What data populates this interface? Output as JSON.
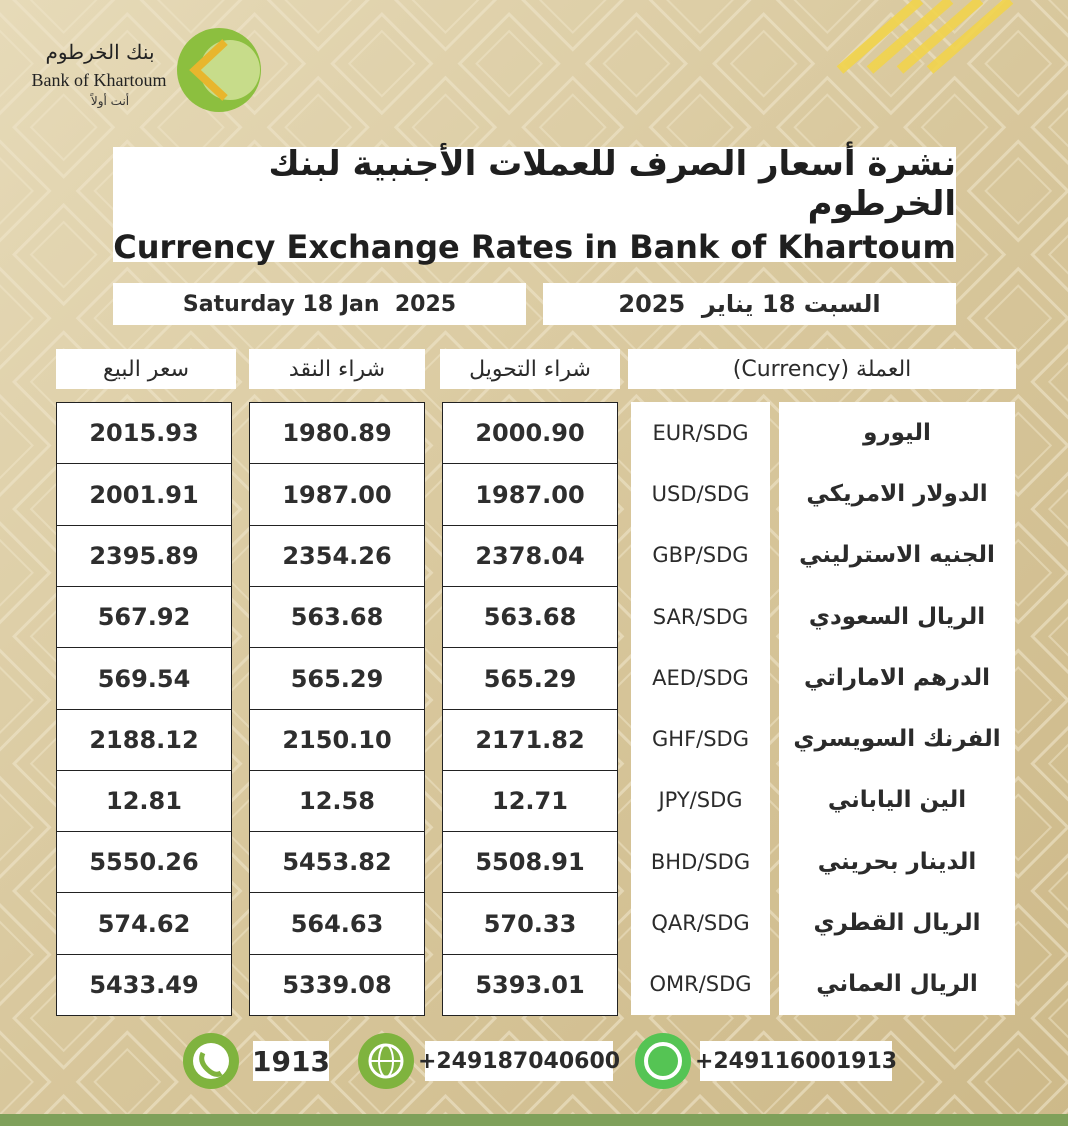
{
  "logo": {
    "name_ar": "بنك الخرطوم",
    "name_en": "Bank of Khartoum",
    "tagline": "أنت أولاً"
  },
  "header": {
    "title_ar": "نشرة أسعار الصرف للعملات الأجنبية لبنك الخرطوم",
    "title_en": "Currency Exchange Rates in Bank of Khartoum",
    "date_en": "Saturday 18 Jan  2025",
    "date_ar": "السبت 18 يناير  2025"
  },
  "table": {
    "columns": [
      "سعر البيع",
      "شراء النقد",
      "شراء التحويل",
      "العملة (Currency)"
    ],
    "rows": [
      {
        "name": "اليورو",
        "code": "EUR/SDG",
        "transfer": "2000.90",
        "cash": "1980.89",
        "sell": "2015.93"
      },
      {
        "name": "الدولار الامريكي",
        "code": "USD/SDG",
        "transfer": "1987.00",
        "cash": "1987.00",
        "sell": "2001.91"
      },
      {
        "name": "الجنيه الاسترليني",
        "code": "GBP/SDG",
        "transfer": "2378.04",
        "cash": "2354.26",
        "sell": "2395.89"
      },
      {
        "name": "الريال السعودي",
        "code": "SAR/SDG",
        "transfer": "563.68",
        "cash": "563.68",
        "sell": "567.92"
      },
      {
        "name": "الدرهم الاماراتي",
        "code": "AED/SDG",
        "transfer": "565.29",
        "cash": "565.29",
        "sell": "569.54"
      },
      {
        "name": "الفرنك السويسري",
        "code": "GHF/SDG",
        "transfer": "2171.82",
        "cash": "2150.10",
        "sell": "2188.12"
      },
      {
        "name": "الين الياباني",
        "code": "JPY/SDG",
        "transfer": "12.71",
        "cash": "12.58",
        "sell": "12.81"
      },
      {
        "name": "الدينار بحريني",
        "code": "BHD/SDG",
        "transfer": "5508.91",
        "cash": "5453.82",
        "sell": "5550.26"
      },
      {
        "name": "الريال القطري",
        "code": "QAR/SDG",
        "transfer": "570.33",
        "cash": "564.63",
        "sell": "574.62"
      },
      {
        "name": "الريال العماني",
        "code": "OMR/SDG",
        "transfer": "5393.01",
        "cash": "5339.08",
        "sell": "5433.49"
      }
    ]
  },
  "footer": {
    "hotline": "1913",
    "phone": "+249187040600",
    "whatsapp": "+249116001913"
  }
}
